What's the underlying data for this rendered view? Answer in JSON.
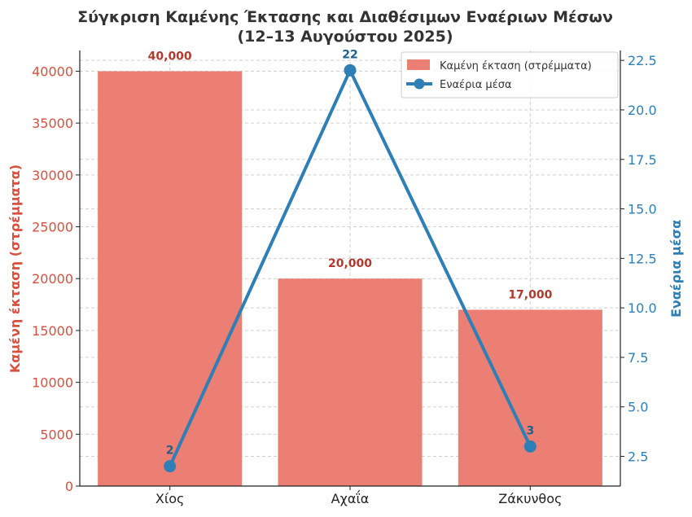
{
  "chart_data": {
    "type": "bar",
    "title_line1": "Σύγκριση Καμένης Έκτασης και Διαθέσιμων Εναέριων Μέσων",
    "title_line2": "(12–13 Αυγούστου 2025)",
    "categories": [
      "Χίος",
      "Αχαΐα",
      "Ζάκυνθος"
    ],
    "series": [
      {
        "name": "Καμένη έκταση (στρέμματα)",
        "type": "bar",
        "axis": "left",
        "values": [
          40000,
          20000,
          17000
        ],
        "value_labels": [
          "40,000",
          "20,000",
          "17,000"
        ],
        "color": "#ec7f73",
        "label_color": "#b03a2e"
      },
      {
        "name": "Εναέρια μέσα",
        "type": "line",
        "axis": "right",
        "values": [
          2,
          22,
          3
        ],
        "value_labels": [
          "2",
          "22",
          "3"
        ],
        "color": "#2e7fb5",
        "label_color": "#1f5f8b"
      }
    ],
    "y_left": {
      "label": "Καμένη έκταση (στρέμματα)",
      "ticks": [
        "0",
        "5000",
        "10000",
        "15000",
        "20000",
        "25000",
        "30000",
        "35000",
        "40000"
      ],
      "tick_values": [
        0,
        5000,
        10000,
        15000,
        20000,
        25000,
        30000,
        35000,
        40000
      ],
      "ylim": [
        0,
        42000
      ],
      "color": "#d9503f"
    },
    "y_right": {
      "label": "Εναέρια μέσα",
      "ticks": [
        "2.5",
        "5.0",
        "7.5",
        "10.0",
        "12.5",
        "15.0",
        "17.5",
        "20.0",
        "22.5"
      ],
      "tick_values": [
        2.5,
        5.0,
        7.5,
        10.0,
        12.5,
        15.0,
        17.5,
        20.0,
        22.5
      ],
      "ylim": [
        1,
        23
      ],
      "color": "#2e7fb5"
    },
    "grid": true,
    "legend_position": "top-right"
  }
}
